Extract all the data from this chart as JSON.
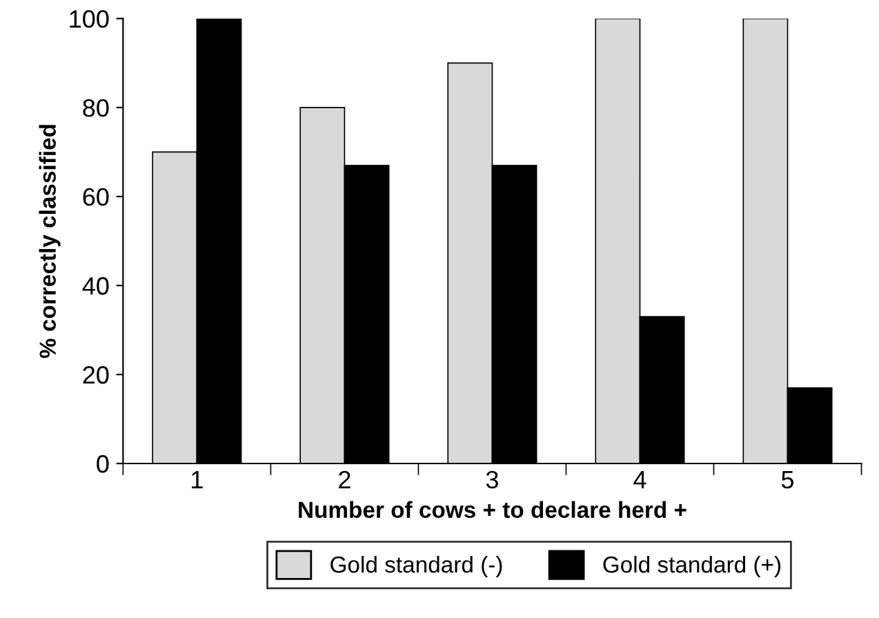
{
  "chart_data": {
    "type": "bar",
    "xlabel": "Number of cows + to declare herd +",
    "ylabel": "% correctly classified",
    "categories": [
      "1",
      "2",
      "3",
      "4",
      "5"
    ],
    "series": [
      {
        "name": "Gold standard (-)",
        "color": "#d9d9d9",
        "values": [
          70,
          80,
          90,
          100,
          100
        ]
      },
      {
        "name": "Gold standard (+)",
        "color": "#000000",
        "values": [
          100,
          67,
          67,
          33,
          17
        ]
      }
    ],
    "ylim": [
      0,
      100
    ],
    "yticks": [
      0,
      20,
      40,
      60,
      80,
      100
    ],
    "legend": "bottom"
  }
}
